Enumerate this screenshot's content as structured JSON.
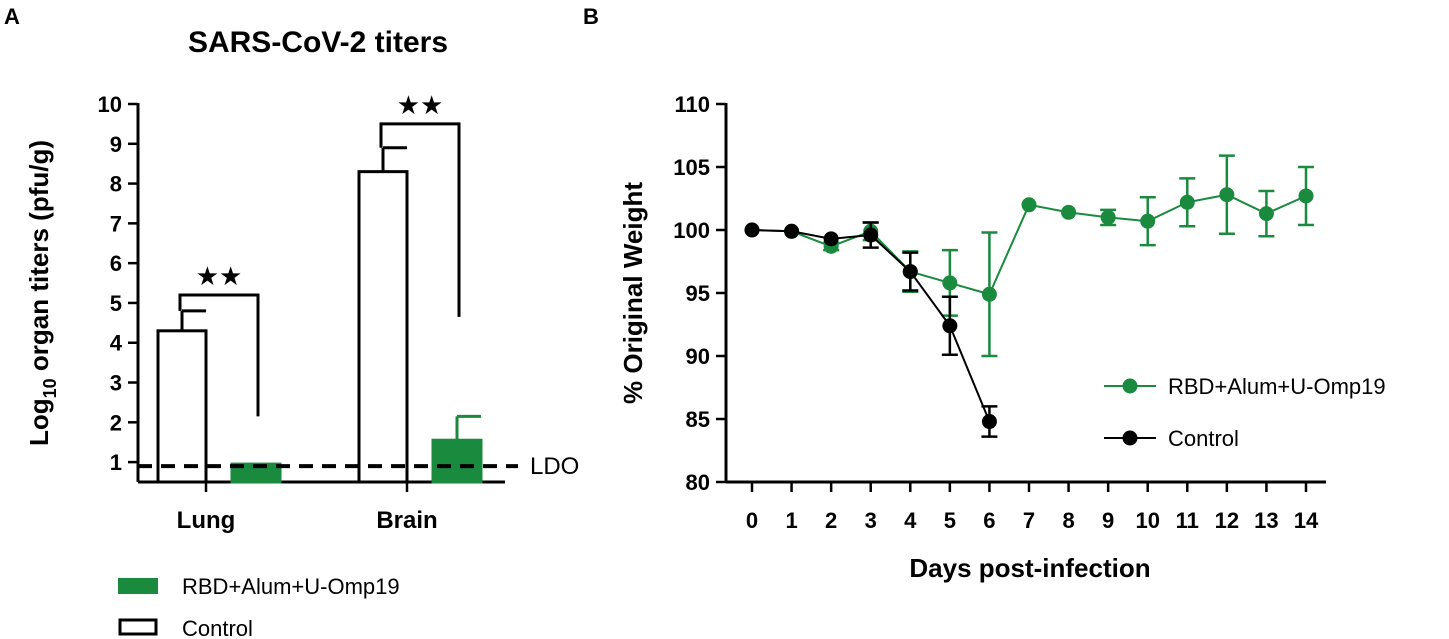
{
  "panel_a_label": "A",
  "panel_b_label": "B",
  "chart_data": [
    {
      "type": "bar",
      "title": "SARS-CoV-2 titers",
      "ylabel": "Log",
      "ylabel_sub": "10",
      "ylabel_rest": " organ titers (pfu/g)",
      "ylim": [
        0.5,
        10
      ],
      "yticks": [
        1,
        2,
        3,
        4,
        5,
        6,
        7,
        8,
        9,
        10
      ],
      "categories": [
        "Lung",
        "Brain"
      ],
      "series": [
        {
          "name": "Control",
          "values": [
            4.3,
            8.3
          ],
          "errors": [
            0.5,
            0.6
          ],
          "color": "#ffffff",
          "stroke": "#000000"
        },
        {
          "name": "RBD+Alum+U-Omp19",
          "values": [
            0.95,
            1.55
          ],
          "errors": [
            0.0,
            0.6
          ],
          "color": "#1a8a3e",
          "stroke": "#1a8a3e"
        }
      ],
      "reference_line": {
        "value": 0.9,
        "label": "LDO"
      },
      "significance": [
        {
          "category": "Lung",
          "label": "★★",
          "bracket_y": 5.2,
          "left_drop_to": 4.8,
          "right_drop_to": 2.15
        },
        {
          "category": "Brain",
          "label": "★★",
          "bracket_y": 9.5,
          "left_drop_to": 8.9,
          "right_drop_to": 4.65
        }
      ],
      "legend": [
        "RBD+Alum+U-Omp19",
        "Control"
      ]
    },
    {
      "type": "line",
      "ylabel": "% Original Weight",
      "xlabel": "Days post-infection",
      "ylim": [
        80,
        110
      ],
      "yticks": [
        80,
        85,
        90,
        95,
        100,
        105,
        110
      ],
      "xticks": [
        0,
        1,
        2,
        3,
        4,
        5,
        6,
        7,
        8,
        9,
        10,
        11,
        12,
        13,
        14
      ],
      "series": [
        {
          "name": "RBD+Alum+U-Omp19",
          "color": "#1a8a3e",
          "x": [
            0,
            1,
            2,
            3,
            4,
            5,
            6,
            7,
            8,
            9,
            10,
            11,
            12,
            13,
            14
          ],
          "y": [
            100,
            99.9,
            98.7,
            99.9,
            96.7,
            95.8,
            94.9,
            102.0,
            101.4,
            101.0,
            100.7,
            102.2,
            102.8,
            101.3,
            102.7
          ],
          "err": [
            0,
            0,
            0.3,
            0.7,
            1.6,
            2.6,
            4.9,
            0,
            0,
            0.6,
            1.9,
            1.9,
            3.1,
            1.8,
            2.3
          ]
        },
        {
          "name": "Control",
          "color": "#000000",
          "x": [
            0,
            1,
            2,
            3,
            4,
            5,
            6
          ],
          "y": [
            100,
            99.9,
            99.3,
            99.6,
            96.7,
            92.4,
            84.8
          ],
          "err": [
            0,
            0,
            0,
            1.0,
            1.5,
            2.3,
            1.2
          ]
        }
      ],
      "legend": [
        "RBD+Alum+U-Omp19",
        "Control"
      ]
    }
  ]
}
